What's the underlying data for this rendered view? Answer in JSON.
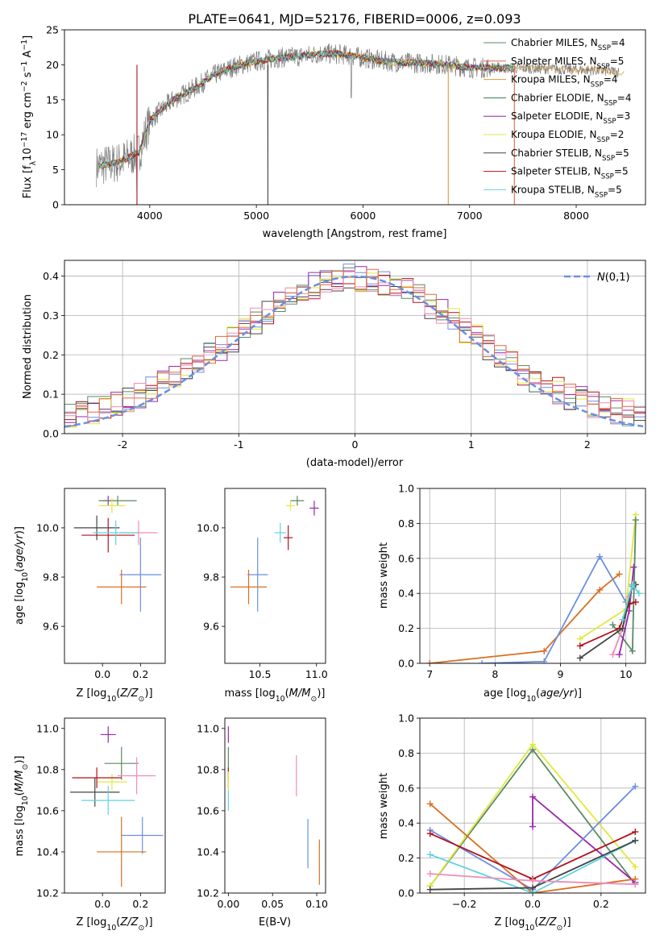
{
  "figure": {
    "title": "PLATE=0641, MJD=52176, FIBERID=0006, z=0.093"
  },
  "colors": [
    "#5a8a64",
    "#9b27ae",
    "#d86f22",
    "#2e7a4a",
    "#8e24aa",
    "#e2e83c",
    "#444444",
    "#b0131b",
    "#5fd3e0",
    "#6b8fe0",
    "#f08cb8",
    "#d8b23a"
  ],
  "chart_data": [
    {
      "id": "spectrum",
      "type": "line",
      "title": "PLATE=0641, MJD=52176, FIBERID=0006, z=0.093",
      "xlabel": "wavelength [Angstrom, rest frame]",
      "ylabel": "Flux [f_λ10^-17 erg cm^-2 s^-1 A^-1]",
      "xlim": [
        3200,
        8650
      ],
      "ylim": [
        0,
        25
      ],
      "xticks": [
        4000,
        5000,
        6000,
        7000,
        8000
      ],
      "yticks": [
        0,
        5,
        10,
        15,
        20,
        25
      ],
      "grid": false,
      "legend": "top-right",
      "observed_anchor_points": {
        "x": [
          3500,
          3700,
          3900,
          4000,
          4200,
          4400,
          4600,
          4800,
          5000,
          5200,
          5400,
          5600,
          5800,
          6000,
          6200,
          6400,
          6600,
          6800,
          7000,
          7200,
          7400,
          7600,
          7800,
          8000,
          8200,
          8400
        ],
        "y": [
          5.5,
          6.0,
          7.5,
          12.0,
          14.8,
          16.5,
          18.5,
          19.8,
          20.5,
          21.0,
          21.2,
          21.6,
          21.5,
          21.0,
          20.5,
          20.3,
          20.2,
          20.0,
          19.6,
          19.6,
          19.5,
          19.5,
          19.4,
          19.3,
          19.2,
          19.0
        ]
      },
      "series": [
        {
          "name": "Chabrier MILES, N_SSP=4",
          "color": "#5a8a64"
        },
        {
          "name": "Salpeter MILES, N_SSP=5",
          "color": "#e06a3a"
        },
        {
          "name": "Kroupa MILES, N_SSP=4",
          "color": "#d89a3a"
        },
        {
          "name": "Chabrier ELODIE, N_SSP=4",
          "color": "#2e7a4a"
        },
        {
          "name": "Salpeter ELODIE, N_SSP=3",
          "color": "#8e24aa"
        },
        {
          "name": "Kroupa ELODIE, N_SSP=2",
          "color": "#e2e83c"
        },
        {
          "name": "Chabrier STELIB, N_SSP=5",
          "color": "#444444"
        },
        {
          "name": "Salpeter STELIB, N_SSP=5",
          "color": "#b0131b"
        },
        {
          "name": "Kroupa STELIB, N_SSP=5",
          "color": "#5fd3e0"
        }
      ]
    },
    {
      "id": "residuals",
      "type": "bar",
      "xlabel": "(data-model)/error",
      "ylabel": "Normed distribution",
      "xlim": [
        -2.5,
        2.5
      ],
      "ylim": [
        0,
        0.44
      ],
      "xticks": [
        -2,
        -1,
        0,
        1,
        2
      ],
      "yticks": [
        0.0,
        0.1,
        0.2,
        0.3,
        0.4
      ],
      "grid": true,
      "legend": "top-right",
      "gaussian_label": "N(0,1)",
      "bin_width": 0.1,
      "histogram_colors": [
        "#6b8fe0",
        "#b0131b",
        "#9b27ae",
        "#5a8a64",
        "#e2e83c",
        "#444444",
        "#f08cb8",
        "#e06a3a"
      ]
    },
    {
      "id": "age_vs_Z",
      "type": "scatter",
      "xlabel": "Z [log10(Z/Z⊙)]",
      "ylabel": "age [log10(age/yr)]",
      "xlim": [
        -0.2,
        0.33
      ],
      "ylim": [
        9.45,
        10.16
      ],
      "xticks": [
        0.0,
        0.2
      ],
      "yticks": [
        9.6,
        9.8,
        10.0
      ],
      "points": [
        {
          "x": 0.03,
          "y": 10.11,
          "xerr": 0.03,
          "yerr": 0.02,
          "color": "#9b27ae"
        },
        {
          "x": 0.08,
          "y": 10.11,
          "xerr": 0.1,
          "yerr": 0.02,
          "color": "#5a8a64"
        },
        {
          "x": 0.05,
          "y": 10.09,
          "xerr": 0.07,
          "yerr": 0.03,
          "color": "#e2e83c"
        },
        {
          "x": -0.03,
          "y": 10.0,
          "xerr": 0.12,
          "yerr": 0.05,
          "color": "#444444"
        },
        {
          "x": 0.03,
          "y": 9.97,
          "xerr": 0.14,
          "yerr": 0.07,
          "color": "#b0131b"
        },
        {
          "x": 0.19,
          "y": 9.98,
          "xerr": 0.1,
          "yerr": 0.05,
          "color": "#f08cb8"
        },
        {
          "x": 0.07,
          "y": 9.98,
          "xerr": 0.12,
          "yerr": 0.05,
          "color": "#5fd3e0"
        },
        {
          "x": 0.2,
          "y": 9.81,
          "xerr": 0.11,
          "yerr": 0.15,
          "color": "#6b8fe0"
        },
        {
          "x": 0.1,
          "y": 9.76,
          "xerr": 0.13,
          "yerr": 0.07,
          "color": "#d86f22"
        }
      ]
    },
    {
      "id": "age_vs_mass",
      "type": "scatter",
      "xlabel": "mass [log10(M/M⊙)]",
      "ylabel": "",
      "xlim": [
        10.19,
        11.08
      ],
      "ylim": [
        9.45,
        10.16
      ],
      "xticks": [
        10.5,
        11.0
      ],
      "yticks": [
        9.6,
        9.8,
        10.0
      ],
      "points": [
        {
          "x": 10.98,
          "y": 10.08,
          "xerr": 0.04,
          "yerr": 0.03,
          "color": "#9b27ae"
        },
        {
          "x": 10.83,
          "y": 10.11,
          "xerr": 0.06,
          "yerr": 0.02,
          "color": "#5a8a64"
        },
        {
          "x": 10.77,
          "y": 10.09,
          "xerr": 0.04,
          "yerr": 0.02,
          "color": "#e2e83c"
        },
        {
          "x": 10.68,
          "y": 9.98,
          "xerr": 0.05,
          "yerr": 0.04,
          "color": "#5fd3e0"
        },
        {
          "x": 10.75,
          "y": 9.96,
          "xerr": 0.04,
          "yerr": 0.05,
          "color": "#b0131b"
        },
        {
          "x": 10.48,
          "y": 9.81,
          "xerr": 0.09,
          "yerr": 0.15,
          "color": "#6b8fe0"
        },
        {
          "x": 10.4,
          "y": 9.76,
          "xerr": 0.16,
          "yerr": 0.07,
          "color": "#d86f22"
        }
      ]
    },
    {
      "id": "weight_vs_age",
      "type": "line",
      "xlabel": "age [log10(age/yr)]",
      "ylabel": "mass weight",
      "xlim": [
        6.85,
        10.3
      ],
      "ylim": [
        0,
        1
      ],
      "xticks": [
        7,
        8,
        9,
        10
      ],
      "yticks": [
        0.0,
        0.2,
        0.4,
        0.6,
        0.8,
        1.0
      ],
      "grid": true,
      "series": [
        {
          "color": "#d86f22",
          "x": [
            7.0,
            8.75,
            9.6,
            9.9
          ],
          "y": [
            0.0,
            0.07,
            0.42,
            0.51
          ]
        },
        {
          "color": "#6b8fe0",
          "x": [
            7.8,
            8.75,
            9.6,
            10.0,
            10.1
          ],
          "y": [
            0.0,
            0.01,
            0.61,
            0.35,
            0.44
          ]
        },
        {
          "color": "#e2e83c",
          "x": [
            9.3,
            10.0,
            10.15
          ],
          "y": [
            0.14,
            0.31,
            0.85
          ]
        },
        {
          "color": "#5a8a64",
          "x": [
            9.8,
            10.1,
            10.15
          ],
          "y": [
            0.22,
            0.07,
            0.82
          ]
        },
        {
          "color": "#9b27ae",
          "x": [
            9.9,
            10.05,
            10.12
          ],
          "y": [
            0.05,
            0.3,
            0.55
          ]
        },
        {
          "color": "#f08cb8",
          "x": [
            9.8,
            9.95,
            10.05
          ],
          "y": [
            0.05,
            0.2,
            0.38
          ]
        },
        {
          "color": "#b0131b",
          "x": [
            9.3,
            9.9,
            10.05,
            10.15
          ],
          "y": [
            0.1,
            0.2,
            0.34,
            0.35
          ]
        },
        {
          "color": "#444444",
          "x": [
            9.3,
            9.95,
            10.1,
            10.15
          ],
          "y": [
            0.03,
            0.2,
            0.45,
            0.45
          ]
        },
        {
          "color": "#5fd3e0",
          "x": [
            9.95,
            10.1,
            10.2
          ],
          "y": [
            0.25,
            0.45,
            0.4
          ]
        }
      ]
    },
    {
      "id": "mass_vs_Z",
      "type": "scatter",
      "xlabel": "Z [log10(Z/Z⊙)]",
      "ylabel": "mass [log10(M/M⊙)]",
      "xlim": [
        -0.2,
        0.33
      ],
      "ylim": [
        10.2,
        11.05
      ],
      "xticks": [
        0.0,
        0.2
      ],
      "yticks": [
        10.2,
        10.4,
        10.6,
        10.8,
        11.0
      ],
      "points": [
        {
          "x": 0.03,
          "y": 10.97,
          "xerr": 0.04,
          "yerr": 0.04,
          "color": "#9b27ae"
        },
        {
          "x": 0.1,
          "y": 10.83,
          "xerr": 0.09,
          "yerr": 0.08,
          "color": "#5a8a64"
        },
        {
          "x": 0.18,
          "y": 10.77,
          "xerr": 0.1,
          "yerr": 0.09,
          "color": "#f08cb8"
        },
        {
          "x": 0.05,
          "y": 10.74,
          "xerr": 0.08,
          "yerr": 0.04,
          "color": "#e2e83c"
        },
        {
          "x": -0.03,
          "y": 10.76,
          "xerr": 0.13,
          "yerr": 0.05,
          "color": "#b0131b"
        },
        {
          "x": -0.04,
          "y": 10.69,
          "xerr": 0.13,
          "yerr": 0.07,
          "color": "#444444"
        },
        {
          "x": 0.03,
          "y": 10.65,
          "xerr": 0.14,
          "yerr": 0.07,
          "color": "#5fd3e0"
        },
        {
          "x": 0.21,
          "y": 10.48,
          "xerr": 0.11,
          "yerr": 0.09,
          "color": "#6b8fe0"
        },
        {
          "x": 0.1,
          "y": 10.4,
          "xerr": 0.13,
          "yerr": 0.17,
          "color": "#d86f22"
        }
      ]
    },
    {
      "id": "mass_vs_EBV",
      "type": "scatter",
      "xlabel": "E(B-V)",
      "ylabel": "",
      "xlim": [
        -0.004,
        0.11
      ],
      "ylim": [
        10.2,
        11.05
      ],
      "xticks": [
        0.0,
        0.05,
        0.1
      ],
      "yticks": [
        10.2,
        10.4,
        10.6,
        10.8,
        11.0
      ],
      "points": [
        {
          "x": 0.0,
          "y": 10.97,
          "yerr": 0.04,
          "color": "#9b27ae"
        },
        {
          "x": 0.0,
          "y": 10.83,
          "yerr": 0.08,
          "color": "#5a8a64"
        },
        {
          "x": 0.0,
          "y": 10.76,
          "yerr": 0.05,
          "color": "#b0131b"
        },
        {
          "x": 0.0,
          "y": 10.74,
          "yerr": 0.05,
          "color": "#e2e83c"
        },
        {
          "x": 0.0,
          "y": 10.65,
          "yerr": 0.05,
          "color": "#5fd3e0"
        },
        {
          "x": 0.077,
          "y": 10.77,
          "yerr": 0.1,
          "color": "#f08cb8"
        },
        {
          "x": 0.09,
          "y": 10.44,
          "yerr": 0.12,
          "color": "#6b8fe0"
        },
        {
          "x": 0.103,
          "y": 10.35,
          "yerr": 0.11,
          "color": "#d86f22"
        }
      ]
    },
    {
      "id": "weight_vs_Z",
      "type": "line",
      "xlabel": "Z [log10(Z/Z⊙)]",
      "ylabel": "mass weight",
      "xlim": [
        -0.33,
        0.33
      ],
      "ylim": [
        0,
        1
      ],
      "xticks": [
        -0.2,
        0.0,
        0.2
      ],
      "yticks": [
        0.0,
        0.2,
        0.4,
        0.6,
        0.8,
        1.0
      ],
      "grid": true,
      "series": [
        {
          "color": "#5a8a64",
          "x": [
            -0.3,
            0.0,
            0.3
          ],
          "y": [
            0.04,
            0.82,
            0.05
          ]
        },
        {
          "color": "#e2e83c",
          "x": [
            -0.3,
            0.0,
            0.3
          ],
          "y": [
            0.04,
            0.85,
            0.15
          ]
        },
        {
          "color": "#9b27ae",
          "x": [
            0.0,
            0.0,
            0.3
          ],
          "y": [
            0.38,
            0.55,
            0.06
          ]
        },
        {
          "color": "#6b8fe0",
          "x": [
            -0.3,
            0.0,
            0.3
          ],
          "y": [
            0.36,
            0.02,
            0.61
          ]
        },
        {
          "color": "#d86f22",
          "x": [
            -0.3,
            0.0,
            0.3
          ],
          "y": [
            0.51,
            0.0,
            0.08
          ]
        },
        {
          "color": "#b0131b",
          "x": [
            -0.3,
            0.0,
            0.3
          ],
          "y": [
            0.34,
            0.08,
            0.35
          ]
        },
        {
          "color": "#5fd3e0",
          "x": [
            -0.3,
            0.0,
            0.3
          ],
          "y": [
            0.22,
            0.0,
            0.3
          ]
        },
        {
          "color": "#444444",
          "x": [
            -0.3,
            0.0,
            0.3
          ],
          "y": [
            0.02,
            0.03,
            0.3
          ]
        },
        {
          "color": "#f08cb8",
          "x": [
            -0.3,
            0.0,
            0.3
          ],
          "y": [
            0.11,
            0.07,
            0.05
          ]
        }
      ]
    }
  ]
}
